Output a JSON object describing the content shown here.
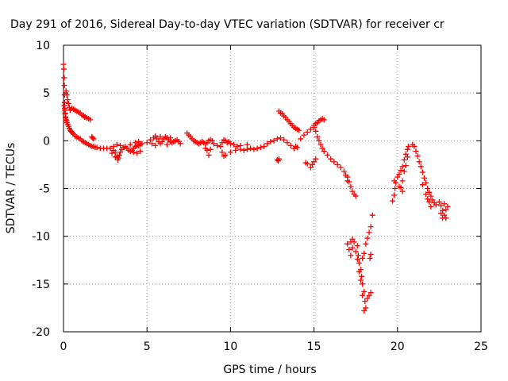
{
  "chart_data": {
    "type": "scatter",
    "title": "Day 291 of 2016, Sidereal Day-to-day VTEC variation (SDTVAR) for receiver cr",
    "xlabel": "GPS time / hours",
    "ylabel": "SDTVAR / TECUs",
    "xlim": [
      0,
      25
    ],
    "ylim": [
      -20,
      10
    ],
    "xticks": [
      0,
      5,
      10,
      15,
      20,
      25
    ],
    "yticks": [
      10,
      5,
      0,
      -5,
      -10,
      -15,
      -20
    ],
    "xtick_labels": [
      "0",
      "5",
      "10",
      "15",
      "20",
      "25"
    ],
    "ytick_labels": [
      "10",
      "5",
      "0",
      "-5",
      "-10",
      "-15",
      "-20"
    ],
    "grid": true,
    "legend": "none",
    "marker": "plus",
    "series": [
      {
        "color": "#ff0000",
        "points": [
          [
            0.0,
            8.0
          ],
          [
            0.02,
            7.5
          ],
          [
            0.04,
            6.6
          ],
          [
            0.05,
            5.8
          ],
          [
            0.06,
            4.8
          ],
          [
            0.07,
            4.0
          ],
          [
            0.08,
            3.4
          ],
          [
            0.1,
            2.9
          ],
          [
            0.12,
            2.5
          ],
          [
            0.15,
            2.2
          ],
          [
            0.2,
            1.9
          ],
          [
            0.25,
            1.7
          ],
          [
            0.3,
            1.5
          ],
          [
            0.35,
            1.3
          ],
          [
            0.4,
            1.1
          ],
          [
            0.45,
            1.0
          ],
          [
            0.5,
            0.9
          ],
          [
            0.55,
            0.8
          ],
          [
            0.6,
            0.7
          ],
          [
            0.7,
            0.5
          ],
          [
            0.8,
            0.4
          ],
          [
            0.9,
            0.3
          ],
          [
            1.0,
            0.2
          ],
          [
            1.1,
            0.0
          ],
          [
            1.2,
            -0.1
          ],
          [
            1.3,
            -0.2
          ],
          [
            1.4,
            -0.3
          ],
          [
            1.5,
            -0.4
          ],
          [
            1.6,
            -0.5
          ],
          [
            1.7,
            -0.6
          ],
          [
            1.8,
            -0.6
          ],
          [
            1.9,
            -0.7
          ],
          [
            0.15,
            5.2
          ],
          [
            0.2,
            4.8
          ],
          [
            0.25,
            4.3
          ],
          [
            0.3,
            3.9
          ],
          [
            0.35,
            3.5
          ],
          [
            0.4,
            3.2
          ],
          [
            0.05,
            3.7
          ],
          [
            0.08,
            3.2
          ],
          [
            0.1,
            2.8
          ],
          [
            0.12,
            2.4
          ],
          [
            0.18,
            2.1
          ],
          [
            0.5,
            3.4
          ],
          [
            0.6,
            3.3
          ],
          [
            0.7,
            3.2
          ],
          [
            0.8,
            3.1
          ],
          [
            0.9,
            3.0
          ],
          [
            1.0,
            2.9
          ],
          [
            1.1,
            2.7
          ],
          [
            1.2,
            2.6
          ],
          [
            1.3,
            2.5
          ],
          [
            1.4,
            2.4
          ],
          [
            1.5,
            2.3
          ],
          [
            1.6,
            2.2
          ],
          [
            1.25,
            2.5
          ],
          [
            1.7,
            0.4
          ],
          [
            1.75,
            0.3
          ],
          [
            1.8,
            0.2
          ],
          [
            2.0,
            -0.7
          ],
          [
            2.2,
            -0.8
          ],
          [
            2.4,
            -0.8
          ],
          [
            2.6,
            -0.8
          ],
          [
            2.8,
            -0.8
          ],
          [
            3.0,
            -1.0
          ],
          [
            3.1,
            -1.2
          ],
          [
            3.2,
            -1.6
          ],
          [
            3.25,
            -2.0
          ],
          [
            3.3,
            -1.8
          ],
          [
            3.35,
            -1.5
          ],
          [
            3.4,
            -1.2
          ],
          [
            3.5,
            -0.9
          ],
          [
            3.6,
            -0.7
          ],
          [
            3.7,
            -0.6
          ],
          [
            3.8,
            -0.8
          ],
          [
            3.9,
            -1.0
          ],
          [
            4.0,
            -1.1
          ],
          [
            4.1,
            -1.0
          ],
          [
            4.2,
            -0.8
          ],
          [
            4.3,
            -0.6
          ],
          [
            4.4,
            -0.5
          ],
          [
            4.5,
            -0.5
          ],
          [
            4.6,
            -0.4
          ],
          [
            4.7,
            -0.3
          ],
          [
            4.2,
            -1.2
          ],
          [
            4.4,
            -1.3
          ],
          [
            4.6,
            -1.1
          ],
          [
            4.0,
            -0.4
          ],
          [
            4.3,
            -0.2
          ],
          [
            4.5,
            -0.1
          ],
          [
            3.2,
            -0.4
          ],
          [
            3.4,
            -0.5
          ],
          [
            3.0,
            -0.6
          ],
          [
            2.9,
            -1.3
          ],
          [
            3.1,
            -1.7
          ],
          [
            5.0,
            -0.2
          ],
          [
            5.2,
            0.1
          ],
          [
            5.4,
            0.3
          ],
          [
            5.5,
            0.5
          ],
          [
            5.6,
            0.2
          ],
          [
            5.7,
            -0.1
          ],
          [
            5.8,
            -0.3
          ],
          [
            5.9,
            -0.1
          ],
          [
            6.0,
            0.2
          ],
          [
            6.1,
            0.4
          ],
          [
            6.2,
            0.3
          ],
          [
            6.3,
            0.1
          ],
          [
            6.4,
            -0.1
          ],
          [
            6.5,
            -0.2
          ],
          [
            6.6,
            -0.1
          ],
          [
            6.7,
            0.0
          ],
          [
            6.8,
            0.1
          ],
          [
            6.9,
            -0.1
          ],
          [
            7.0,
            -0.3
          ],
          [
            5.3,
            -0.3
          ],
          [
            5.5,
            -0.5
          ],
          [
            5.8,
            0.4
          ],
          [
            6.2,
            -0.4
          ],
          [
            6.4,
            0.3
          ],
          [
            7.4,
            0.8
          ],
          [
            7.5,
            0.6
          ],
          [
            7.6,
            0.4
          ],
          [
            7.7,
            0.2
          ],
          [
            7.8,
            0.0
          ],
          [
            7.9,
            -0.1
          ],
          [
            8.0,
            -0.2
          ],
          [
            8.1,
            -0.3
          ],
          [
            8.2,
            -0.2
          ],
          [
            8.3,
            -0.1
          ],
          [
            8.4,
            -0.2
          ],
          [
            8.5,
            -0.3
          ],
          [
            8.6,
            -0.2
          ],
          [
            8.7,
            0.0
          ],
          [
            8.8,
            0.1
          ],
          [
            8.9,
            0.0
          ],
          [
            8.6,
            -1.0
          ],
          [
            8.7,
            -1.5
          ],
          [
            8.5,
            -0.8
          ],
          [
            8.8,
            -0.9
          ],
          [
            9.0,
            -0.3
          ],
          [
            9.2,
            -0.5
          ],
          [
            9.4,
            -0.6
          ],
          [
            9.5,
            -0.2
          ],
          [
            9.6,
            0.1
          ],
          [
            9.7,
            0.0
          ],
          [
            9.8,
            -0.2
          ],
          [
            9.9,
            -0.1
          ],
          [
            10.0,
            -0.3
          ],
          [
            10.2,
            -0.4
          ],
          [
            10.4,
            -0.6
          ],
          [
            10.6,
            -0.9
          ],
          [
            10.8,
            -1.0
          ],
          [
            11.0,
            -0.9
          ],
          [
            11.2,
            -0.8
          ],
          [
            11.4,
            -0.9
          ],
          [
            11.6,
            -0.8
          ],
          [
            11.8,
            -0.7
          ],
          [
            12.0,
            -0.6
          ],
          [
            12.2,
            -0.3
          ],
          [
            12.4,
            -0.1
          ],
          [
            12.6,
            0.0
          ],
          [
            12.8,
            0.2
          ],
          [
            13.0,
            0.3
          ],
          [
            13.2,
            0.1
          ],
          [
            13.4,
            -0.2
          ],
          [
            13.6,
            -0.5
          ],
          [
            13.8,
            -0.8
          ],
          [
            9.5,
            -1.2
          ],
          [
            9.6,
            -1.6
          ],
          [
            9.7,
            -1.5
          ],
          [
            10.0,
            -1.2
          ],
          [
            10.3,
            -1.0
          ],
          [
            10.6,
            -0.5
          ],
          [
            11.0,
            -0.4
          ],
          [
            12.8,
            -2.0
          ],
          [
            12.85,
            -2.1
          ],
          [
            12.9,
            -1.9
          ],
          [
            12.9,
            3.1
          ],
          [
            13.0,
            2.9
          ],
          [
            13.1,
            2.8
          ],
          [
            13.2,
            2.6
          ],
          [
            13.3,
            2.4
          ],
          [
            13.4,
            2.2
          ],
          [
            13.5,
            2.0
          ],
          [
            13.6,
            1.8
          ],
          [
            13.7,
            1.6
          ],
          [
            13.8,
            1.4
          ],
          [
            13.9,
            1.3
          ],
          [
            14.0,
            1.2
          ],
          [
            14.1,
            1.1
          ],
          [
            13.9,
            -0.6
          ],
          [
            14.0,
            -0.7
          ],
          [
            14.2,
            0.2
          ],
          [
            14.4,
            0.6
          ],
          [
            14.6,
            0.9
          ],
          [
            14.8,
            1.2
          ],
          [
            15.0,
            1.6
          ],
          [
            15.1,
            1.8
          ],
          [
            15.2,
            1.9
          ],
          [
            15.3,
            2.1
          ],
          [
            15.4,
            2.2
          ],
          [
            15.5,
            2.3
          ],
          [
            15.6,
            2.2
          ],
          [
            14.5,
            -2.3
          ],
          [
            14.6,
            -2.4
          ],
          [
            14.8,
            -2.8
          ],
          [
            14.9,
            -2.5
          ],
          [
            15.0,
            -2.2
          ],
          [
            15.1,
            -1.9
          ],
          [
            15.0,
            1.4
          ],
          [
            15.1,
            1.0
          ],
          [
            15.2,
            0.4
          ],
          [
            15.3,
            0.0
          ],
          [
            15.4,
            -0.4
          ],
          [
            15.5,
            -0.8
          ],
          [
            15.6,
            -1.1
          ],
          [
            15.8,
            -1.5
          ],
          [
            16.0,
            -1.9
          ],
          [
            16.2,
            -2.2
          ],
          [
            16.4,
            -2.5
          ],
          [
            16.6,
            -2.8
          ],
          [
            16.8,
            -3.2
          ],
          [
            17.0,
            -3.8
          ],
          [
            17.1,
            -4.3
          ],
          [
            17.2,
            -4.8
          ],
          [
            17.3,
            -5.3
          ],
          [
            17.4,
            -5.6
          ],
          [
            17.5,
            -5.8
          ],
          [
            16.9,
            -3.6
          ],
          [
            17.0,
            -4.2
          ],
          [
            17.0,
            -10.8
          ],
          [
            17.1,
            -11.4
          ],
          [
            17.2,
            -12.0
          ],
          [
            17.3,
            -11.2
          ],
          [
            17.4,
            -10.6
          ],
          [
            17.5,
            -11.6
          ],
          [
            17.6,
            -12.4
          ],
          [
            17.65,
            -12.0
          ],
          [
            17.7,
            -12.8
          ],
          [
            17.8,
            -13.5
          ],
          [
            17.85,
            -14.2
          ],
          [
            17.9,
            -15.0
          ],
          [
            18.0,
            -15.8
          ],
          [
            18.05,
            -16.8
          ],
          [
            18.1,
            -17.5
          ],
          [
            18.0,
            -17.8
          ],
          [
            18.2,
            -16.5
          ],
          [
            18.3,
            -16.2
          ],
          [
            18.4,
            -15.9
          ],
          [
            17.9,
            -12.3
          ],
          [
            18.0,
            -11.8
          ],
          [
            18.1,
            -10.8
          ],
          [
            18.2,
            -10.2
          ],
          [
            18.3,
            -9.6
          ],
          [
            18.4,
            -9.0
          ],
          [
            18.5,
            -7.8
          ],
          [
            18.35,
            -12.3
          ],
          [
            18.4,
            -11.9
          ],
          [
            17.2,
            -10.6
          ],
          [
            17.3,
            -10.3
          ],
          [
            17.6,
            -11.0
          ],
          [
            17.7,
            -13.7
          ],
          [
            17.8,
            -14.6
          ],
          [
            17.9,
            -16.2
          ],
          [
            19.7,
            -6.3
          ],
          [
            19.8,
            -5.7
          ],
          [
            19.85,
            -5.0
          ],
          [
            19.9,
            -4.4
          ],
          [
            20.0,
            -3.8
          ],
          [
            20.1,
            -3.5
          ],
          [
            20.2,
            -3.1
          ],
          [
            20.3,
            -2.7
          ],
          [
            20.4,
            -2.0
          ],
          [
            20.5,
            -1.4
          ],
          [
            20.6,
            -0.9
          ],
          [
            20.65,
            -0.6
          ],
          [
            20.3,
            -4.2
          ],
          [
            20.4,
            -3.2
          ],
          [
            20.5,
            -2.6
          ],
          [
            20.6,
            -1.7
          ],
          [
            20.2,
            -4.9
          ],
          [
            20.3,
            -5.3
          ],
          [
            20.1,
            -4.8
          ],
          [
            19.8,
            -4.2
          ],
          [
            20.9,
            -0.4
          ],
          [
            21.0,
            -0.6
          ],
          [
            21.1,
            -1.1
          ],
          [
            21.2,
            -1.6
          ],
          [
            21.3,
            -2.2
          ],
          [
            21.4,
            -2.7
          ],
          [
            21.5,
            -3.3
          ],
          [
            21.6,
            -3.9
          ],
          [
            21.7,
            -4.4
          ],
          [
            21.8,
            -5.0
          ],
          [
            21.9,
            -5.4
          ],
          [
            22.0,
            -5.8
          ],
          [
            22.1,
            -6.2
          ],
          [
            22.2,
            -6.5
          ],
          [
            22.3,
            -6.7
          ],
          [
            21.7,
            -5.6
          ],
          [
            21.8,
            -6.1
          ],
          [
            21.9,
            -6.4
          ],
          [
            22.0,
            -6.9
          ],
          [
            21.5,
            -4.6
          ],
          [
            22.5,
            -6.4
          ],
          [
            22.6,
            -6.8
          ],
          [
            22.7,
            -7.3
          ],
          [
            22.8,
            -7.8
          ],
          [
            22.9,
            -8.1
          ],
          [
            22.6,
            -7.6
          ],
          [
            22.7,
            -8.1
          ],
          [
            22.8,
            -6.6
          ],
          [
            22.9,
            -7.2
          ],
          [
            23.0,
            -6.9
          ]
        ]
      }
    ]
  }
}
